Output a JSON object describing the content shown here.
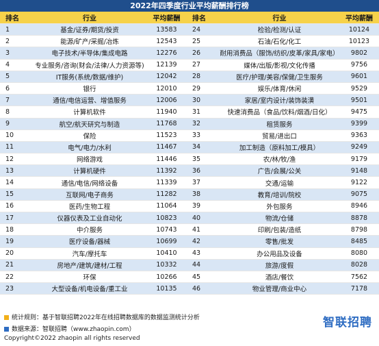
{
  "title": "2022年四季度行业平均薪酬排行榜",
  "headers": {
    "rank": "排名",
    "industry": "行业",
    "salary": "平均薪酬"
  },
  "rows": [
    {
      "rank": "1",
      "industry": "基金/证券/期货/投资",
      "salary": "13583",
      "rank2": "24",
      "industry2": "检验/检测/认证",
      "salary2": "10124"
    },
    {
      "rank": "2",
      "industry": "能源/矿产/采掘/冶炼",
      "salary": "12543",
      "rank2": "25",
      "industry2": "石油/石化/化工",
      "salary2": "10123"
    },
    {
      "rank": "3",
      "industry": "电子技术/半导体/集成电路",
      "salary": "12276",
      "rank2": "26",
      "industry2": "耐用消费品（服饰/纺织/皮革/家具/家电）",
      "salary2": "9802"
    },
    {
      "rank": "4",
      "industry": "专业服务/咨询(财会/法律/人力资源等)",
      "salary": "12139",
      "rank2": "27",
      "industry2": "媒体/出版/影视/文化传播",
      "salary2": "9756"
    },
    {
      "rank": "5",
      "industry": "IT服务(系统/数据/维护)",
      "salary": "12042",
      "rank2": "28",
      "industry2": "医疗/护理/美容/保健/卫生服务",
      "salary2": "9601"
    },
    {
      "rank": "6",
      "industry": "银行",
      "salary": "12010",
      "rank2": "29",
      "industry2": "娱乐/体育/休闲",
      "salary2": "9529"
    },
    {
      "rank": "7",
      "industry": "通信/电信运营、增值服务",
      "salary": "12006",
      "rank2": "30",
      "industry2": "家居/室内设计/装饰装潢",
      "salary2": "9501"
    },
    {
      "rank": "8",
      "industry": "计算机软件",
      "salary": "11940",
      "rank2": "31",
      "industry2": "快速消费品（食品/饮料/烟酒/日化）",
      "salary2": "9475"
    },
    {
      "rank": "9",
      "industry": "航空/航天研究与制造",
      "salary": "11768",
      "rank2": "32",
      "industry2": "租赁服务",
      "salary2": "9399"
    },
    {
      "rank": "10",
      "industry": "保险",
      "salary": "11523",
      "rank2": "33",
      "industry2": "贸易/进出口",
      "salary2": "9363"
    },
    {
      "rank": "11",
      "industry": "电气/电力/水利",
      "salary": "11467",
      "rank2": "34",
      "industry2": "加工制造（原料加工/模具）",
      "salary2": "9249"
    },
    {
      "rank": "12",
      "industry": "网络游戏",
      "salary": "11446",
      "rank2": "35",
      "industry2": "农/林/牧/渔",
      "salary2": "9179"
    },
    {
      "rank": "13",
      "industry": "计算机硬件",
      "salary": "11392",
      "rank2": "36",
      "industry2": "广告/会展/公关",
      "salary2": "9148"
    },
    {
      "rank": "14",
      "industry": "通信/电信/网络设备",
      "salary": "11339",
      "rank2": "37",
      "industry2": "交通/运输",
      "salary2": "9122"
    },
    {
      "rank": "15",
      "industry": "互联网/电子商务",
      "salary": "11282",
      "rank2": "38",
      "industry2": "教育/培训/院校",
      "salary2": "9075"
    },
    {
      "rank": "16",
      "industry": "医药/生物工程",
      "salary": "11064",
      "rank2": "39",
      "industry2": "外包服务",
      "salary2": "8946"
    },
    {
      "rank": "17",
      "industry": "仪器仪表及工业自动化",
      "salary": "10823",
      "rank2": "40",
      "industry2": "物流/仓储",
      "salary2": "8878"
    },
    {
      "rank": "18",
      "industry": "中介服务",
      "salary": "10743",
      "rank2": "41",
      "industry2": "印刷/包装/造纸",
      "salary2": "8798"
    },
    {
      "rank": "19",
      "industry": "医疗设备/器械",
      "salary": "10699",
      "rank2": "42",
      "industry2": "零售/批发",
      "salary2": "8485"
    },
    {
      "rank": "20",
      "industry": "汽车/摩托车",
      "salary": "10410",
      "rank2": "43",
      "industry2": "办公用品及设备",
      "salary2": "8080"
    },
    {
      "rank": "21",
      "industry": "房地产/建筑/建材/工程",
      "salary": "10332",
      "rank2": "44",
      "industry2": "旅游/度假",
      "salary2": "8028"
    },
    {
      "rank": "22",
      "industry": "环保",
      "salary": "10266",
      "rank2": "45",
      "industry2": "酒店/餐饮",
      "salary2": "7562"
    },
    {
      "rank": "23",
      "industry": "大型设备/机电设备/重工业",
      "salary": "10135",
      "rank2": "46",
      "industry2": "物业管理/商业中心",
      "salary2": "7178"
    }
  ],
  "footer": {
    "note": "统计规则：基于智联招聘2022年在线招聘数据库的数据监测统计分析",
    "source": "数据来源：智联招聘（www.zhaopin.com）",
    "copyright": "Copyright©2022 zhaopin all rights reserved",
    "logo": "智联招聘"
  },
  "colors": {
    "title_bg": "#1f4e8c",
    "header_bg": "#f6d24a",
    "row_alt": "#d9e6f5",
    "logo": "#2f6dc2",
    "accent": "#f2b019"
  }
}
